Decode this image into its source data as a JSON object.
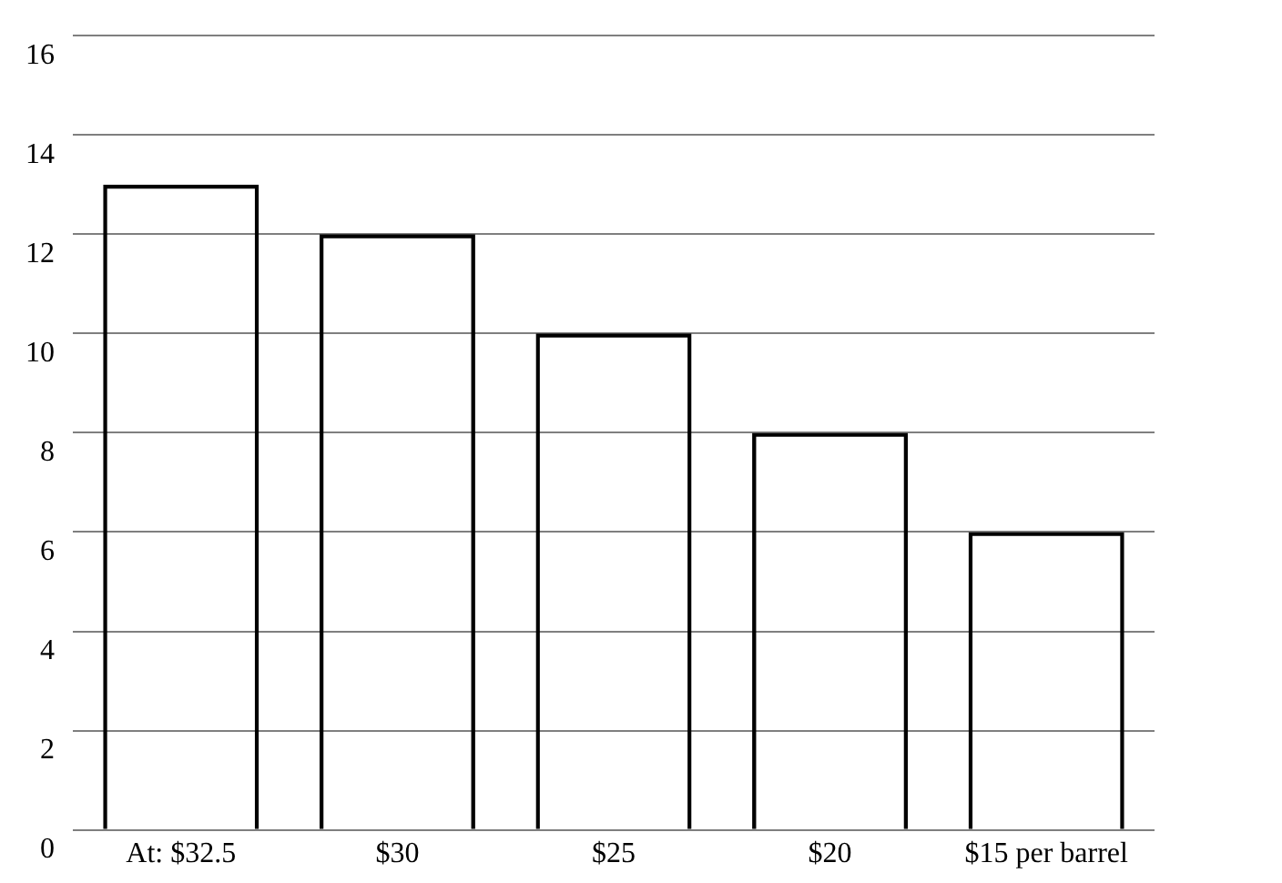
{
  "chart_data": {
    "type": "bar",
    "categories": [
      "At: $32.5",
      "$30",
      "$25",
      "$20",
      "$15 per barrel"
    ],
    "values": [
      13,
      12,
      10,
      8,
      6
    ],
    "color": "#000000",
    "ylim": [
      0,
      16
    ],
    "yticks": [
      0,
      2,
      4,
      6,
      8,
      10,
      12,
      14,
      16
    ],
    "grid": "y"
  }
}
